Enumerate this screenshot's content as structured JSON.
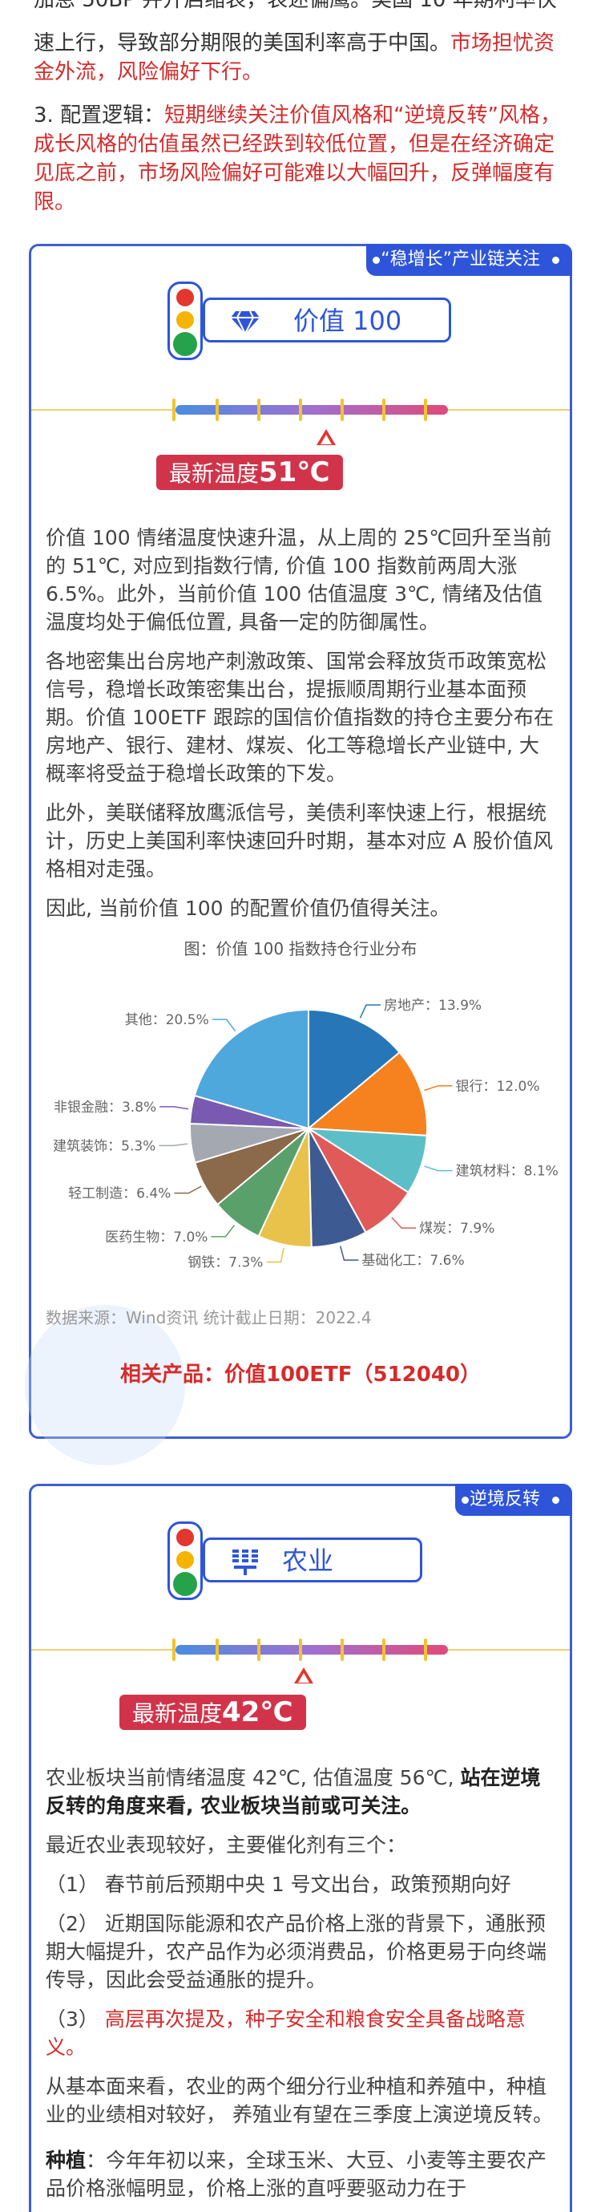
{
  "intro": {
    "clipped_line": "加息 50BP 并开启缩表，表述偏鹰。美国 10 年期利率快",
    "p1_line2_black": "速上行，导致部分期限的美国利率高于中国。",
    "p1_line2_red": "市场担忧资金外流，风险偏好下行。",
    "p2_black": "3. 配置逻辑：",
    "p2_red": "短期继续关注价值风格和“逆境反转”风格，成长风格的估值虽然已经跌到较低位置，但是在经济确定见底之前，市场风险偏好可能难以大幅回升，反弹幅度有限。"
  },
  "card1": {
    "tag": "“稳增长”产业链关注",
    "icon": "diamond-icon",
    "name": "价值 100",
    "temp_label": "最新温度",
    "temp_value": "51℃",
    "para1": "价值 100 情绪温度快速升温，从上周的 25℃回升至当前的 51℃, 对应到指数行情, 价值 100 指数前两周大涨 6.5%。此外，当前价值 100 估值温度 3℃, 情绪及估值温度均处于偏低位置, 具备一定的防御属性。",
    "para2": "各地密集出台房地产刺激政策、国常会释放货币政策宽松信号，稳增长政策密集出台，提振顺周期行业基本面预期。价值 100ETF 跟踪的国信价值指数的持仓主要分布在房地产、银行、建材、煤炭、化工等稳增长产业链中, 大概率将受益于稳增长政策的下发。",
    "para3": "此外，美联储释放鹰派信号，美债利率快速上行，根据统计，历史上美国利率快速回升时期，基本对应 A 股价值风格相对走强。",
    "para4": "因此, 当前价值 100 的配置价值仍值得关注。",
    "source": "数据来源：Wind资讯   统计截止日期：2022.4",
    "product": "相关产品：价值100ETF（512040）"
  },
  "chart_data": {
    "type": "pie",
    "title": "图：价值 100 指数持仓行业分布",
    "slices": [
      {
        "label": "房地产",
        "value": 13.9,
        "display": "房地产：13.9%",
        "color": "#2777b8"
      },
      {
        "label": "银行",
        "value": 12.0,
        "display": "银行：12.0%",
        "color": "#f5821f"
      },
      {
        "label": "建筑材料",
        "value": 8.1,
        "display": "建筑材料：8.1%",
        "color": "#5cbfc7"
      },
      {
        "label": "煤炭",
        "value": 7.9,
        "display": "煤炭：7.9%",
        "color": "#e05a5a"
      },
      {
        "label": "基础化工",
        "value": 7.6,
        "display": "基础化工：7.6%",
        "color": "#3e5a92"
      },
      {
        "label": "钢铁",
        "value": 7.3,
        "display": "钢铁：7.3%",
        "color": "#e8c24a"
      },
      {
        "label": "医药生物",
        "value": 7.0,
        "display": "医药生物：7.0%",
        "color": "#5aa06a"
      },
      {
        "label": "轻工制造",
        "value": 6.4,
        "display": "轻工制造：6.4%",
        "color": "#8a6a4a"
      },
      {
        "label": "建筑装饰",
        "value": 5.3,
        "display": "建筑装饰：5.3%",
        "color": "#a4a8b0"
      },
      {
        "label": "非银金融",
        "value": 3.8,
        "display": "非银金融：3.8%",
        "color": "#7a5ab0"
      },
      {
        "label": "其他",
        "value": 20.5,
        "display": "其他：20.5%",
        "color": "#4fa8dc"
      }
    ]
  },
  "card2": {
    "tag": "逆境反转",
    "icon": "wheat-icon",
    "name": "农业",
    "temp_label": "最新温度",
    "temp_value": "42℃",
    "para1_normal": "农业板块当前情绪温度 42℃, 估值温度 56℃, ",
    "para1_bold": "站在逆境反转的角度来看, 农业板块当前或可关注。",
    "para2": "最近农业表现较好，主要催化剂有三个：",
    "para3": "（1） 春节前后预期中央 1 号文出台，政策预期向好",
    "para4": "（2） 近期国际能源和农产品价格上涨的背景下，通胀预期大幅提升，农产品作为必须消费品，价格更易于向终端传导，因此会受益通胀的提升。",
    "para5_prefix": "（3） ",
    "para5_red": "高层再次提及，种子安全和粮食安全具备战略意义。",
    "para6": "从基本面来看，农业的两个细分行业种植和养殖中，种植业的业绩相对较好， 养殖业有望在三季度上演逆境反转。",
    "para7_bold": "种植",
    "para7": "：今年年初以来，全球玉米、大豆、小麦等主要农产品价格涨幅明显，价格上涨的直呼要驱动力在于"
  }
}
